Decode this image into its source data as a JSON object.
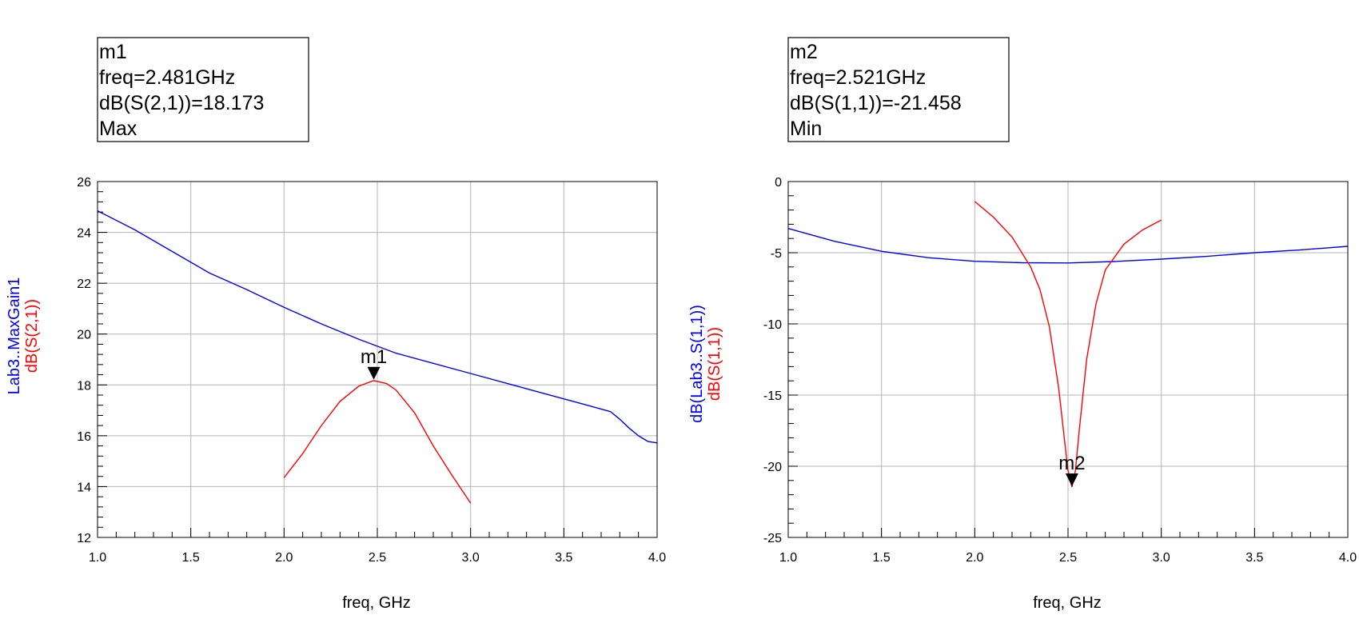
{
  "colors": {
    "blue": "#0000ff",
    "red": "#ff0000",
    "grid": "#b4b4b4"
  },
  "chart_data": [
    {
      "type": "line",
      "xlabel": "freq, GHz",
      "ylabels": [
        "Lab3..MaxGain1",
        "dB(S(2,1))"
      ],
      "xlim": [
        1.0,
        4.0
      ],
      "ylim": [
        12,
        26
      ],
      "xticks": [
        "1.0",
        "1.5",
        "2.0",
        "2.5",
        "3.0",
        "3.5",
        "4.0"
      ],
      "yticks": [
        "12",
        "14",
        "16",
        "18",
        "20",
        "22",
        "24",
        "26"
      ],
      "grid": true,
      "marker_box": [
        "m1",
        "freq=2.481GHz",
        "dB(S(2,1))=18.173",
        "Max"
      ],
      "marker": {
        "name": "m1",
        "x": 2.481,
        "y": 18.173
      },
      "series": [
        {
          "name": "Lab3..MaxGain1",
          "color": "blue",
          "x": [
            1.0,
            1.2,
            1.4,
            1.6,
            1.8,
            2.0,
            2.2,
            2.4,
            2.6,
            2.8,
            3.0,
            3.2,
            3.4,
            3.6,
            3.75,
            3.8,
            3.85,
            3.9,
            3.95,
            4.0
          ],
          "y": [
            24.85,
            24.1,
            23.25,
            22.4,
            21.75,
            21.05,
            20.4,
            19.8,
            19.25,
            18.85,
            18.45,
            18.05,
            17.65,
            17.25,
            16.95,
            16.65,
            16.3,
            16.0,
            15.78,
            15.72
          ]
        },
        {
          "name": "dB(S(2,1))",
          "color": "red",
          "x": [
            2.0,
            2.1,
            2.2,
            2.3,
            2.4,
            2.481,
            2.55,
            2.6,
            2.7,
            2.8,
            2.9,
            3.0
          ],
          "y": [
            14.35,
            15.3,
            16.4,
            17.35,
            17.95,
            18.17,
            18.05,
            17.8,
            16.9,
            15.6,
            14.45,
            13.35
          ]
        }
      ]
    },
    {
      "type": "line",
      "xlabel": "freq, GHz",
      "ylabels": [
        "dB(Lab3..S(1,1))",
        "dB(S(1,1))"
      ],
      "xlim": [
        1.0,
        4.0
      ],
      "ylim": [
        -25,
        0
      ],
      "xticks": [
        "1.0",
        "1.5",
        "2.0",
        "2.5",
        "3.0",
        "3.5",
        "4.0"
      ],
      "yticks": [
        "-25",
        "-20",
        "-15",
        "-10",
        "-5",
        "0"
      ],
      "grid": true,
      "marker_box": [
        "m2",
        "freq=2.521GHz",
        "dB(S(1,1))=-21.458",
        "Min"
      ],
      "marker": {
        "name": "m2",
        "x": 2.521,
        "y": -21.458
      },
      "series": [
        {
          "name": "dB(Lab3..S(1,1))",
          "color": "blue",
          "x": [
            1.0,
            1.25,
            1.5,
            1.75,
            2.0,
            2.25,
            2.5,
            2.75,
            3.0,
            3.25,
            3.5,
            3.75,
            4.0
          ],
          "y": [
            -3.3,
            -4.2,
            -4.9,
            -5.35,
            -5.6,
            -5.7,
            -5.72,
            -5.62,
            -5.45,
            -5.25,
            -5.0,
            -4.8,
            -4.55
          ]
        },
        {
          "name": "dB(S(1,1))",
          "color": "red",
          "x": [
            2.0,
            2.1,
            2.2,
            2.3,
            2.35,
            2.4,
            2.45,
            2.48,
            2.5,
            2.521,
            2.54,
            2.56,
            2.6,
            2.65,
            2.7,
            2.8,
            2.9,
            3.0
          ],
          "y": [
            -1.4,
            -2.5,
            -3.9,
            -6.0,
            -7.6,
            -10.2,
            -14.5,
            -18.0,
            -20.3,
            -21.46,
            -20.3,
            -17.5,
            -12.5,
            -8.6,
            -6.2,
            -4.4,
            -3.4,
            -2.7
          ]
        }
      ]
    }
  ]
}
